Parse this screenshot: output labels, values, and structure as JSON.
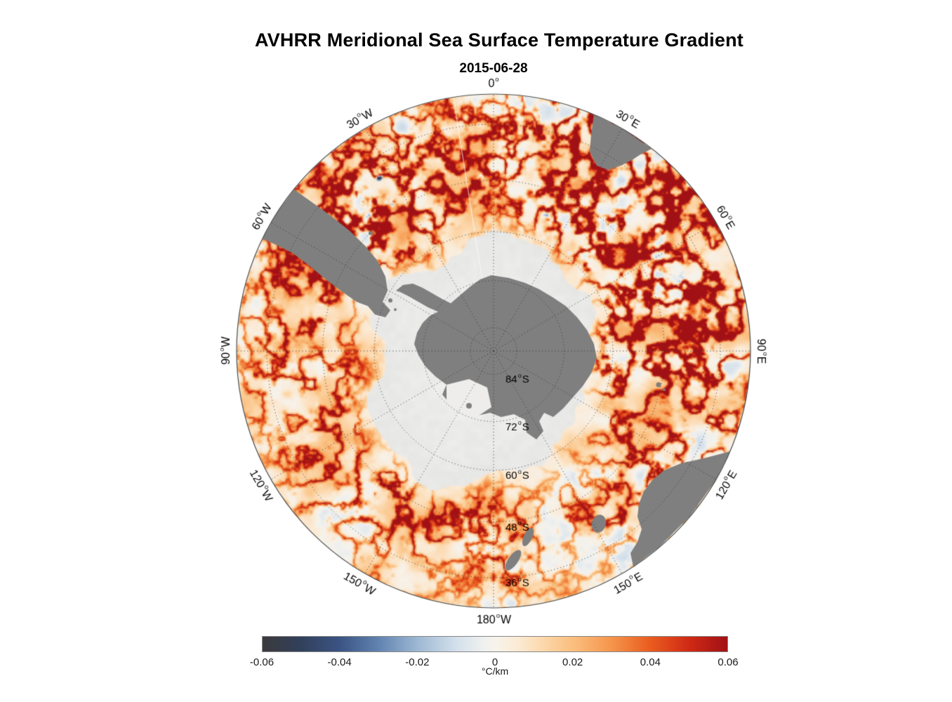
{
  "title": "AVHRR Meridional Sea Surface Temperature Gradient",
  "subtitle": "2015-06-28",
  "colors": {
    "background": "#ffffff",
    "land": "#7f7f7f",
    "ice": "#ebebea",
    "graticule": "#3a3a3a",
    "outline": "#4a4a4a",
    "label": "#000000"
  },
  "chart_data": {
    "type": "heatmap",
    "title": "AVHRR Meridional Sea Surface Temperature Gradient",
    "subtitle": "2015-06-28",
    "date": "2015-06-28",
    "variable": "Meridional sea surface temperature gradient",
    "units": "°C/km",
    "projection": "south polar stereographic, Antarctica centered",
    "latitude_extent_deg_south": [
      90,
      30
    ],
    "value_range": [
      -0.06,
      0.06
    ],
    "longitude_ticks": [
      {
        "deg": 0,
        "label": "0°"
      },
      {
        "deg": 30,
        "label": "30°E"
      },
      {
        "deg": 60,
        "label": "60°E"
      },
      {
        "deg": 90,
        "label": "90°E"
      },
      {
        "deg": 120,
        "label": "120°E"
      },
      {
        "deg": 150,
        "label": "150°E"
      },
      {
        "deg": 180,
        "label": "180°W"
      },
      {
        "deg": 210,
        "label": "150°W"
      },
      {
        "deg": 240,
        "label": "120°W"
      },
      {
        "deg": 270,
        "label": "90°W"
      },
      {
        "deg": 300,
        "label": "60°W"
      },
      {
        "deg": 330,
        "label": "30°W"
      }
    ],
    "latitude_ticks": [
      {
        "lat": 36,
        "label": "36°S"
      },
      {
        "lat": 48,
        "label": "48°S"
      },
      {
        "lat": 60,
        "label": "60°S"
      },
      {
        "lat": 72,
        "label": "72°S"
      },
      {
        "lat": 84,
        "label": "84°S"
      }
    ],
    "colorbar": {
      "ticks": [
        "-0.06",
        "-0.04",
        "-0.02",
        "0",
        "0.02",
        "0.04",
        "0.06"
      ],
      "tick_values": [
        -0.06,
        -0.04,
        -0.02,
        0,
        0.02,
        0.04,
        0.06
      ],
      "label": "°C/km",
      "stops": [
        {
          "v": -0.06,
          "c": "#3a3a3c"
        },
        {
          "v": -0.05,
          "c": "#32405c"
        },
        {
          "v": -0.04,
          "c": "#3b5484"
        },
        {
          "v": -0.03,
          "c": "#6183b0"
        },
        {
          "v": -0.02,
          "c": "#9db8d3"
        },
        {
          "v": -0.01,
          "c": "#d3e0eb"
        },
        {
          "v": -0.003,
          "c": "#eff0ef"
        },
        {
          "v": 0.0,
          "c": "#f7f3ec"
        },
        {
          "v": 0.006,
          "c": "#fbead4"
        },
        {
          "v": 0.012,
          "c": "#fcd9ae"
        },
        {
          "v": 0.02,
          "c": "#fabf7e"
        },
        {
          "v": 0.03,
          "c": "#f5954c"
        },
        {
          "v": 0.04,
          "c": "#ea5d1f"
        },
        {
          "v": 0.05,
          "c": "#d02a15"
        },
        {
          "v": 0.06,
          "c": "#a11015"
        }
      ]
    },
    "land_features_visible": [
      "Antarctica",
      "South America (Patagonia)",
      "southern Africa",
      "Australia",
      "Tasmania",
      "New Zealand"
    ],
    "description": "Mottled field of mostly weak positive (cream/orange) meridional SST gradient over the Southern Ocean with strong red frontal filaments along the Antarctic Circumpolar Current, strongest in the Agulhas Return Current sector (20-70E) and Brazil-Malvinas confluence (40W); scattered negative (blue) patches; pale gray sea-ice/no-data zone surrounding gray Antarctica."
  }
}
